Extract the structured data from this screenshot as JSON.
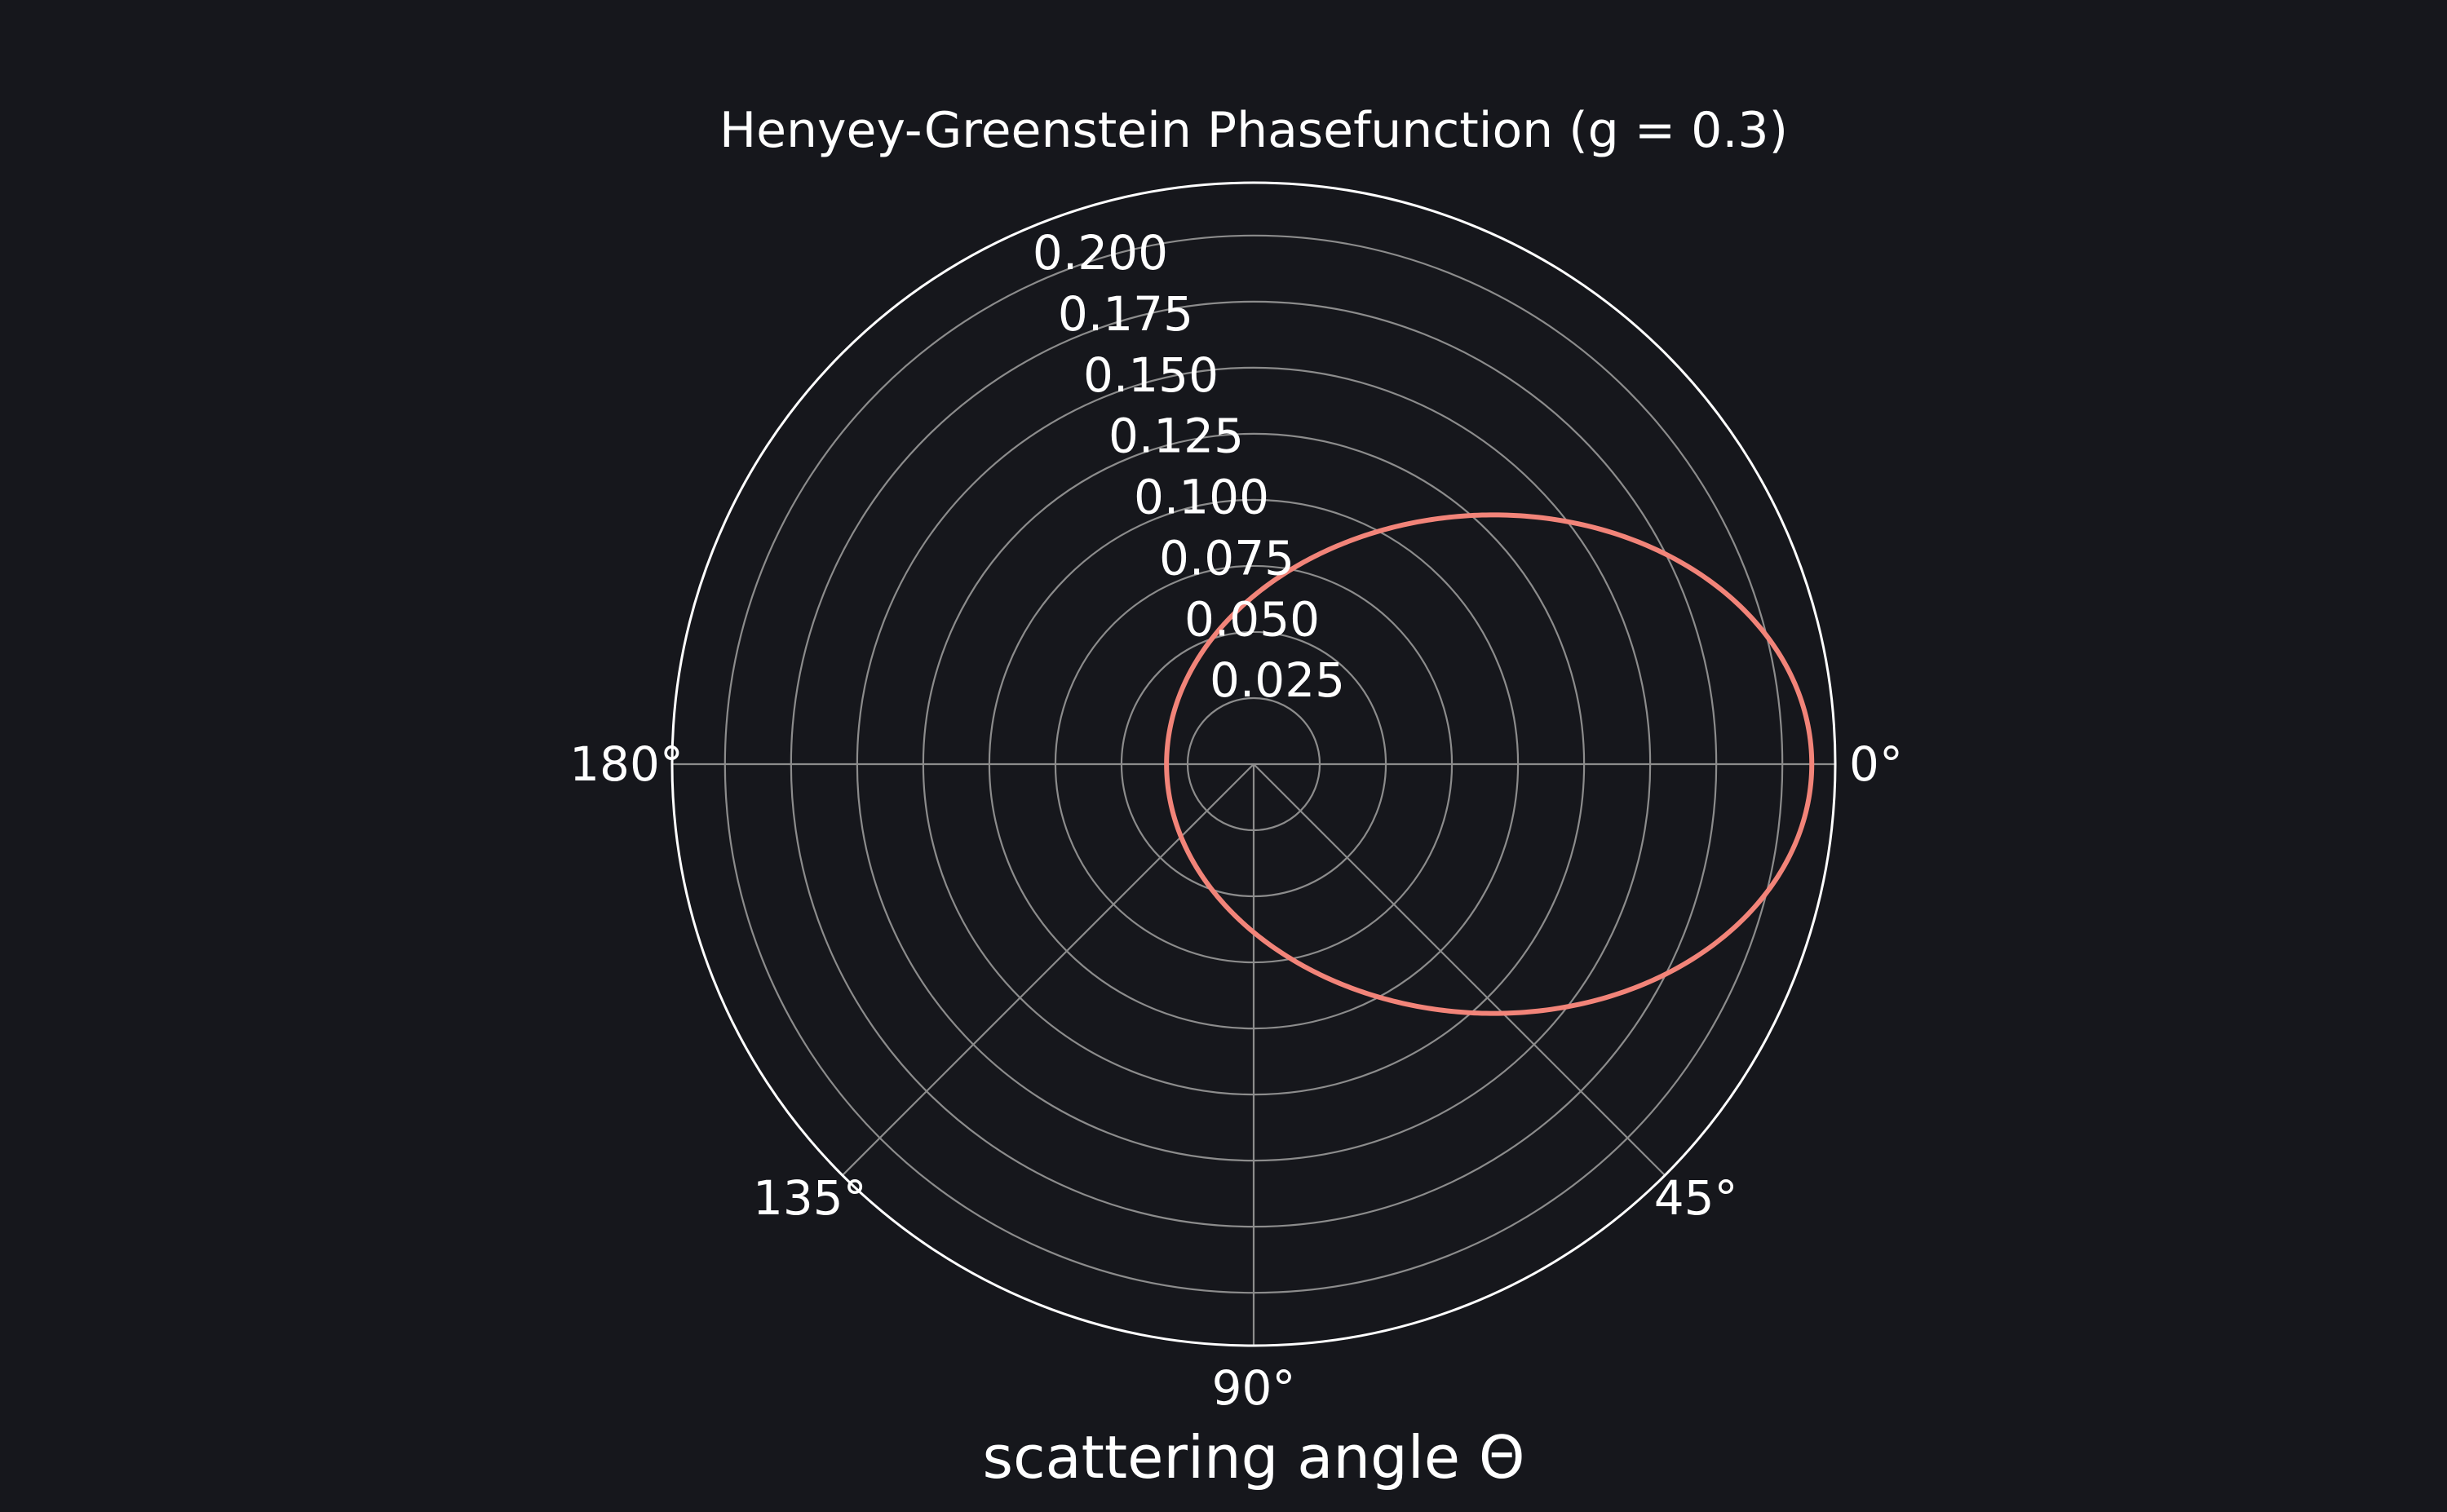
{
  "chart_data": {
    "type": "line",
    "projection": "polar",
    "title": "Henyey-Greenstein Phasefunction (g = 0.3)",
    "xlabel": "scattering angle Θ",
    "g": 0.3,
    "theta_range_deg": [
      0,
      180
    ],
    "rlim": [
      0,
      0.22
    ],
    "radial_ticks": [
      0.025,
      0.05,
      0.075,
      0.1,
      0.125,
      0.15,
      0.175,
      0.2
    ],
    "radial_tick_labels": [
      "0.025",
      "0.050",
      "0.075",
      "0.100",
      "0.125",
      "0.150",
      "0.175",
      "0.200"
    ],
    "angle_ticks_deg": [
      0,
      45,
      90,
      135,
      180
    ],
    "angle_tick_labels": [
      "0°",
      "45°",
      "90°",
      "135°",
      "180°"
    ],
    "grid": true,
    "series": [
      {
        "color": "#f28479",
        "theta_deg": [
          0,
          15,
          30,
          45,
          60,
          75,
          90,
          105,
          120,
          135,
          150,
          165,
          180
        ],
        "values": [
          0.2111,
          0.1913,
          0.146,
          0.1011,
          0.0689,
          0.0487,
          0.0366,
          0.0292,
          0.0245,
          0.0215,
          0.0197,
          0.0187,
          0.0184
        ]
      }
    ]
  }
}
